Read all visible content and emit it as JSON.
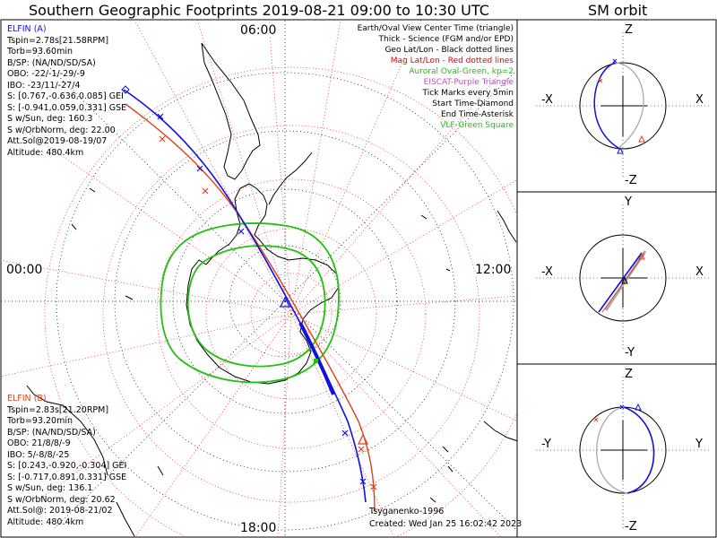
{
  "header": {
    "title": "Southern Geographic Footprints 2019-08-21 09:00 to 10:30 UTC",
    "sm_title": "SM orbit"
  },
  "map": {
    "clock_top": "06:00",
    "clock_left": "00:00",
    "clock_right": "12:00",
    "clock_bottom": "18:00"
  },
  "legend": [
    {
      "text": "Earth/Oval View Center Time (triangle)",
      "color": "#000000"
    },
    {
      "text": "Thick - Science (FGM and/or EPD)",
      "color": "#000000"
    },
    {
      "text": "Geo Lat/Lon - Black dotted lines",
      "color": "#000000"
    },
    {
      "text": "Mag Lat/Lon - Red dotted lines",
      "color": "#e80000"
    },
    {
      "text": "Auroral Oval-Green, kp=2",
      "color": "#22c010"
    },
    {
      "text": "EISCAT-Purple Triangle",
      "color": "#cc44cc"
    },
    {
      "text": "Tick Marks every 5min",
      "color": "#000000"
    },
    {
      "text": "Start Time-Diamond",
      "color": "#000000"
    },
    {
      "text": "End Time-Asterisk",
      "color": "#000000"
    },
    {
      "text": "VLF-Green Square",
      "color": "#22c010"
    }
  ],
  "elfin_a": {
    "name": "ELFIN (A)",
    "color": "#1010e0",
    "lines": [
      "Tspin=2.78s[21.58RPM]",
      "Torb=93.60min",
      "B/SP: (NA/ND/SD/SA)",
      "OBO: -22/-1/-29/-9",
      "IBO: -23/11/-27/4",
      "S: [0.767,-0.636,0.085] GEI",
      "S: [-0.941,0.059,0.331] GSE",
      "S w/Sun, deg: 160.3",
      "S w/OrbNorm, deg: 22.00",
      "Att.Sol@2019-08-19/07",
      "Altitude: 480.4km"
    ]
  },
  "elfin_b": {
    "name": "ELFIN (B)",
    "color": "#e0401a",
    "lines": [
      "Tspin=2.83s[21.20RPM]",
      "Torb=93.20min",
      "B/SP: (NA/ND/SD/SA)",
      "OBO: 21/8/8/-9",
      "IBO: 5/-8/8/-25",
      "S: [0.243,-0.920,-0.304] GEI",
      "S: [-0.717,0.891,0.331] GSE",
      "S w/Sun, deg: 136.1",
      "S w/OrbNorm, deg: 20.62",
      "Att.Sol@: 2019-08-21/02",
      "Altitude: 480.4km"
    ]
  },
  "credits": {
    "author": "Tsyganenko-1996",
    "created": "Created: Wed Jan 25 16:02:42 2023"
  },
  "sm_panels": [
    {
      "top": "Z",
      "bottom": "-Z",
      "left": "-X",
      "right": "X"
    },
    {
      "top": "Y",
      "bottom": "-Y",
      "left": "-X",
      "right": "X"
    },
    {
      "top": "Z",
      "bottom": "-Z",
      "left": "-Y",
      "right": "Y"
    }
  ]
}
